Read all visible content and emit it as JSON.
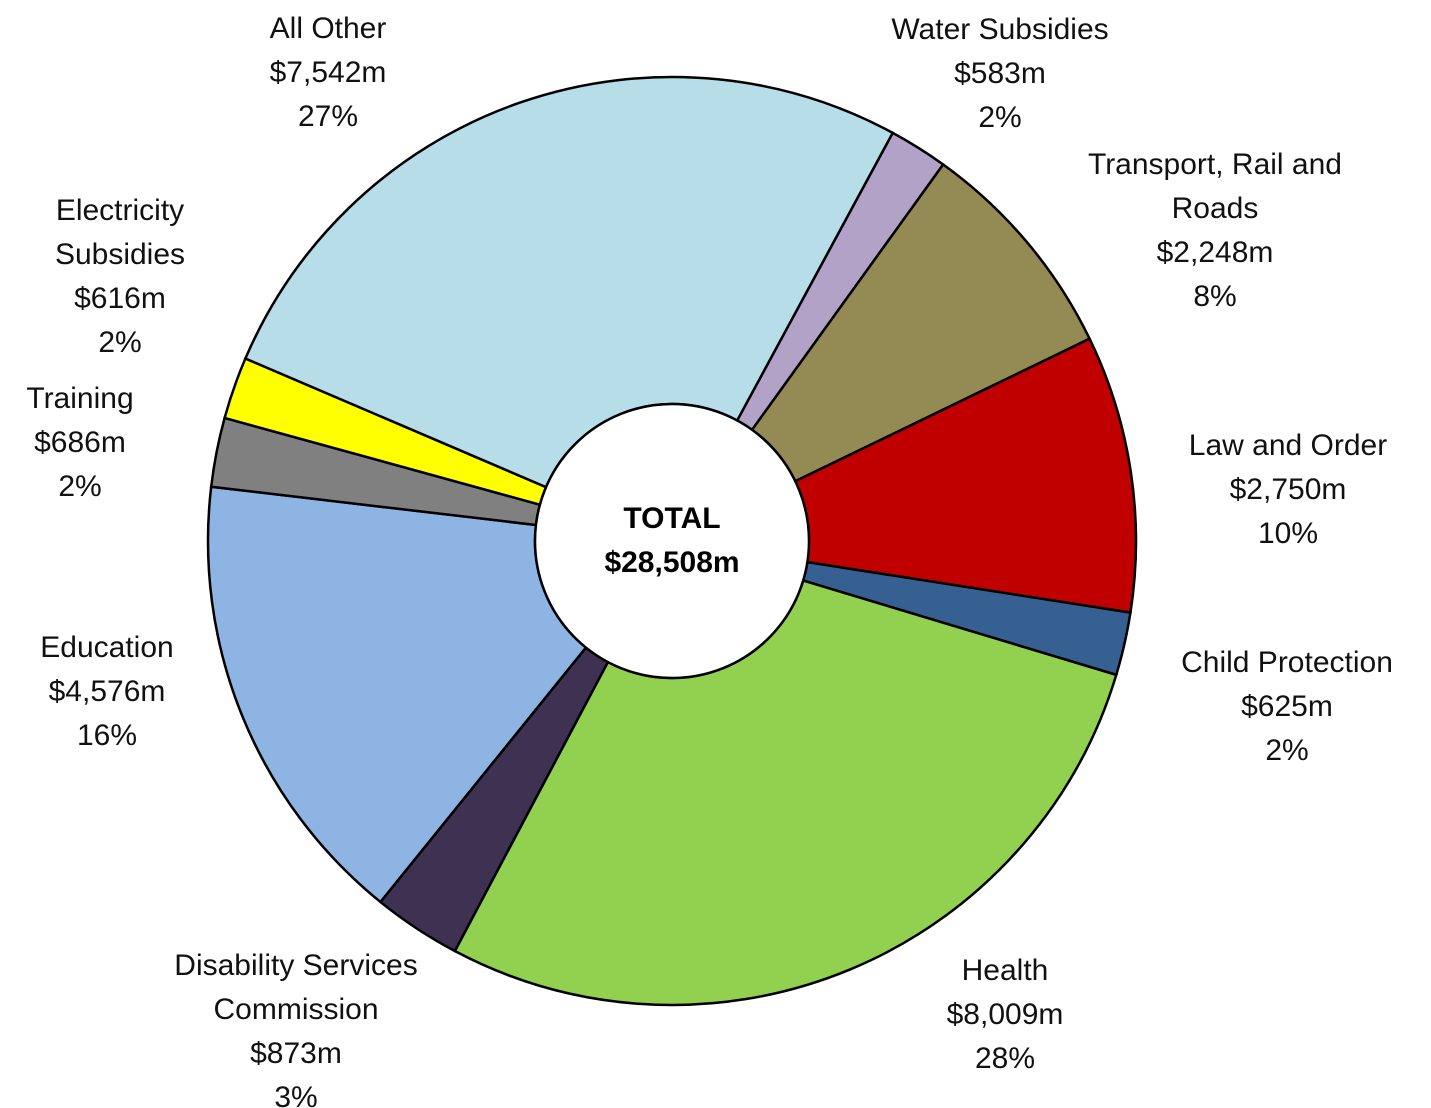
{
  "chart_data": {
    "type": "donut",
    "center_label": [
      "TOTAL",
      "$28,508m"
    ],
    "categories": [
      "Water Subsidies",
      "Transport, Rail and Roads",
      "Law and Order",
      "Child Protection",
      "Health",
      "Disability Services Commission",
      "Education",
      "Training",
      "Electricity Subsidies",
      "All Other"
    ],
    "values": [
      583,
      2248,
      2750,
      625,
      8009,
      873,
      4576,
      686,
      616,
      7542
    ],
    "value_labels": [
      "$583m",
      "$2,248m",
      "$2,750m",
      "$625m",
      "$8,009m",
      "$873m",
      "$4,576m",
      "$686m",
      "$616m",
      "$7,542m"
    ],
    "percent_labels": [
      "2%",
      "8%",
      "10%",
      "2%",
      "28%",
      "3%",
      "16%",
      "2%",
      "2%",
      "27%"
    ],
    "colors": [
      "#b3a2c7",
      "#948a54",
      "#c00000",
      "#376092",
      "#92d050",
      "#3f3151",
      "#8eb4e3",
      "#808080",
      "#ffff00",
      "#b7dde8"
    ]
  }
}
